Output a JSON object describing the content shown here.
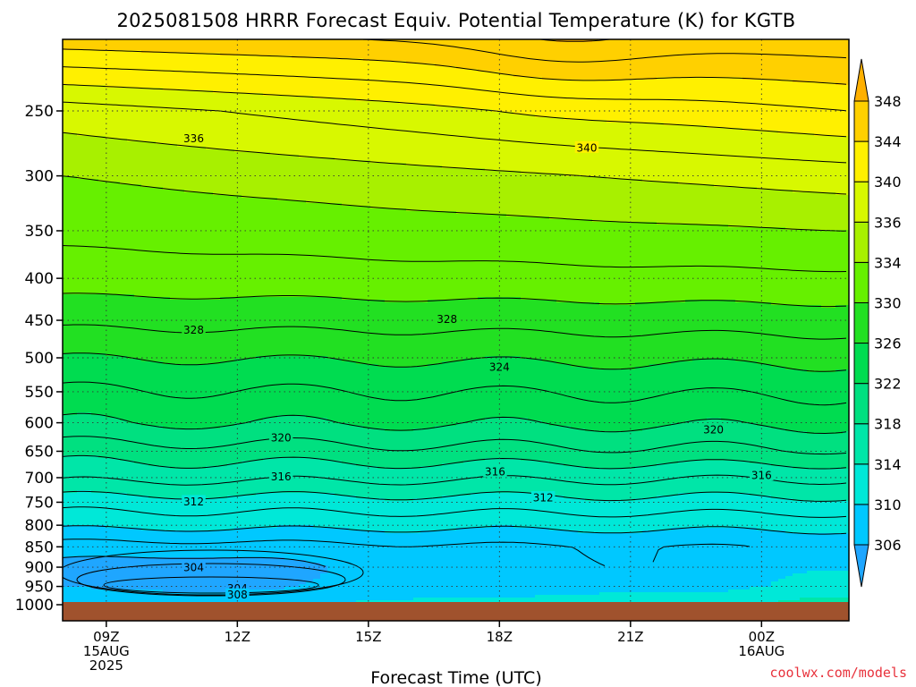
{
  "chart_data": {
    "type": "heatmap",
    "title": "2025081508 HRRR Forecast Equiv. Potential Temperature (K) for KGTB",
    "xlabel": "Forecast Time (UTC)",
    "ylabel": "",
    "x_ticks": [
      {
        "hour": 9,
        "label": "09Z",
        "sub": [
          "15AUG",
          "2025"
        ]
      },
      {
        "hour": 12,
        "label": "12Z",
        "sub": []
      },
      {
        "hour": 15,
        "label": "15Z",
        "sub": []
      },
      {
        "hour": 18,
        "label": "18Z",
        "sub": []
      },
      {
        "hour": 21,
        "label": "21Z",
        "sub": []
      },
      {
        "hour": 24,
        "label": "00Z",
        "sub": [
          "16AUG"
        ]
      }
    ],
    "xlim_hours": [
      8,
      26
    ],
    "y_scale": "log-pressure",
    "ylim_hPa": [
      1000,
      200
    ],
    "y_ticks": [
      250,
      300,
      350,
      400,
      450,
      500,
      550,
      600,
      650,
      700,
      750,
      800,
      850,
      900,
      950,
      1000
    ],
    "grid": "dotted",
    "ground_color": "#a0522d",
    "colorbar": {
      "levels": [
        306,
        310,
        314,
        318,
        322,
        326,
        330,
        334,
        336,
        340,
        344,
        348
      ],
      "colors": [
        "#1fa6ff",
        "#00c8ff",
        "#00e8d8",
        "#00e6a8",
        "#00e080",
        "#00dc50",
        "#22e022",
        "#66f000",
        "#a8f000",
        "#d8f800",
        "#fff000",
        "#ffd000",
        "#ffb000"
      ]
    },
    "contour_interval_K": 2,
    "contour_labels": [
      {
        "value": 336,
        "hour": 11.0,
        "p": 270
      },
      {
        "value": 340,
        "hour": 20.0,
        "p": 277
      },
      {
        "value": 328,
        "hour": 11.0,
        "p": 462
      },
      {
        "value": 328,
        "hour": 16.8,
        "p": 448
      },
      {
        "value": 324,
        "hour": 18.0,
        "p": 513
      },
      {
        "value": 320,
        "hour": 13.0,
        "p": 625
      },
      {
        "value": 320,
        "hour": 22.9,
        "p": 611
      },
      {
        "value": 316,
        "hour": 13.0,
        "p": 697
      },
      {
        "value": 316,
        "hour": 17.9,
        "p": 688
      },
      {
        "value": 316,
        "hour": 24.0,
        "p": 695
      },
      {
        "value": 312,
        "hour": 11.0,
        "p": 748
      },
      {
        "value": 312,
        "hour": 19.0,
        "p": 740
      },
      {
        "value": 304,
        "hour": 11.0,
        "p": 900
      },
      {
        "value": 304,
        "hour": 12.0,
        "p": 955
      },
      {
        "value": 308,
        "hour": 12.0,
        "p": 972
      }
    ]
  },
  "credit": "coolwx.com/models"
}
